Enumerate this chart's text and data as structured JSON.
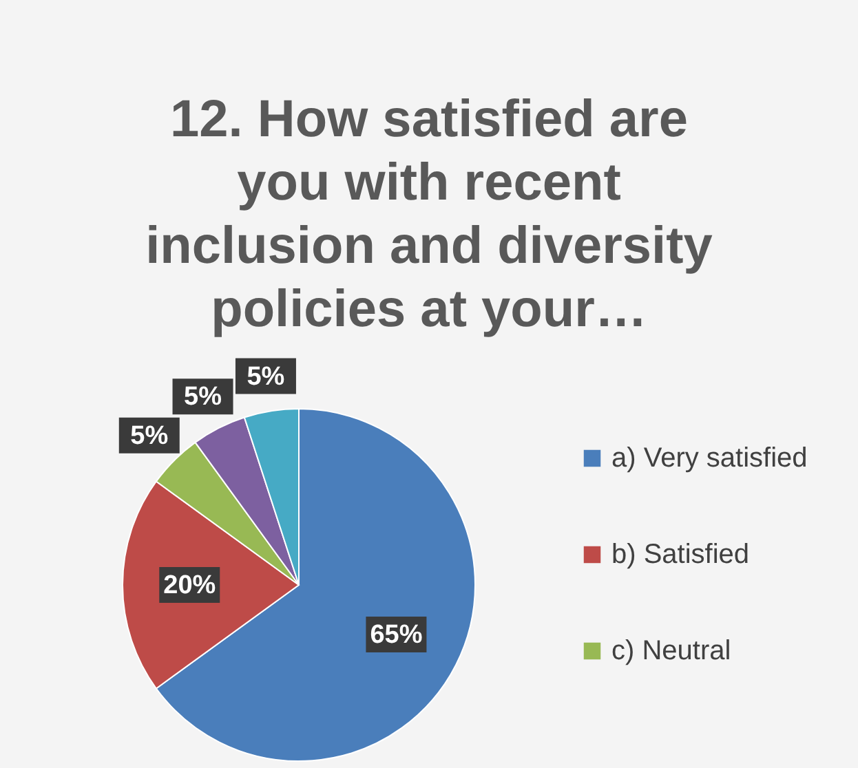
{
  "chart_data": {
    "type": "pie",
    "title": "12. How satisfied are you with recent inclusion and diversity policies at your…",
    "categories": [
      "a) Very satisfied",
      "b) Satisfied",
      "c) Neutral",
      null,
      null
    ],
    "values": [
      65,
      20,
      5,
      5,
      5
    ],
    "colors": [
      "#4a7ebb",
      "#be4b48",
      "#98b954",
      "#7d60a0",
      "#46aac5"
    ],
    "value_labels": [
      "65%",
      "20%",
      "5%",
      "5%",
      "5%"
    ],
    "legend": "right"
  }
}
